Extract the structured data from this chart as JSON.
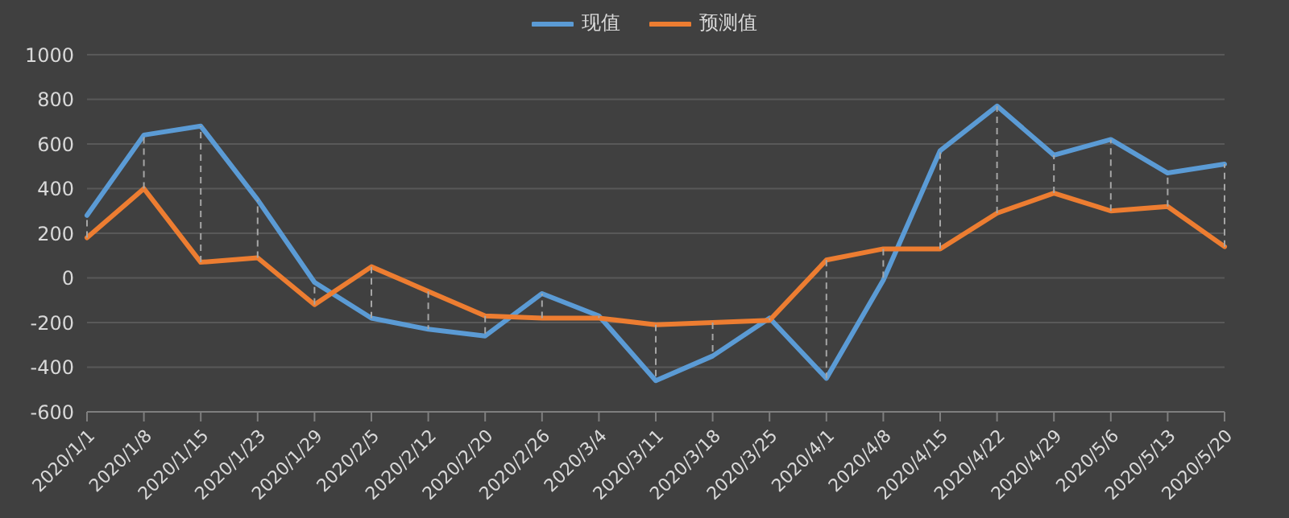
{
  "chart_data": {
    "type": "line",
    "categories": [
      "2020/1/1",
      "2020/1/8",
      "2020/1/15",
      "2020/1/23",
      "2020/1/29",
      "2020/2/5",
      "2020/2/12",
      "2020/2/20",
      "2020/2/26",
      "2020/3/4",
      "2020/3/11",
      "2020/3/18",
      "2020/3/25",
      "2020/4/1",
      "2020/4/8",
      "2020/4/15",
      "2020/4/22",
      "2020/4/29",
      "2020/5/6",
      "2020/5/13",
      "2020/5/20"
    ],
    "series": [
      {
        "name": "现值",
        "color": "#5b9bd5",
        "values": [
          280,
          640,
          680,
          350,
          -20,
          -180,
          -230,
          -260,
          -70,
          -170,
          -460,
          -350,
          -180,
          -450,
          -10,
          570,
          770,
          550,
          620,
          470,
          510
        ]
      },
      {
        "name": "预测值",
        "color": "#ed7d31",
        "values": [
          180,
          400,
          70,
          90,
          -120,
          50,
          -60,
          -170,
          -180,
          -180,
          -210,
          -200,
          -190,
          80,
          130,
          130,
          290,
          380,
          300,
          320,
          140
        ]
      }
    ],
    "ylim": [
      -600,
      1000
    ],
    "yticks": [
      -600,
      -400,
      -200,
      0,
      200,
      400,
      600,
      800,
      1000
    ],
    "grid": "y",
    "legend": "top",
    "marker": "none",
    "line_style": "solid"
  }
}
